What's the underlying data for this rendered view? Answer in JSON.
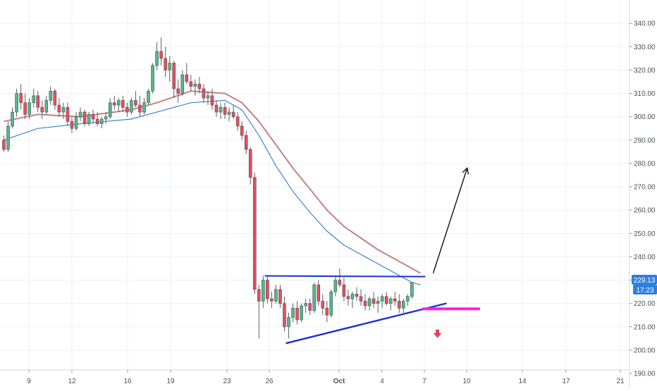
{
  "colors": {
    "up": "#53b987",
    "down": "#eb4d5c",
    "wick": "#5b5f66",
    "ema_fast": "#3b84d8",
    "ema_slow": "#c48286",
    "trendline": "#1c2fd6",
    "target_box": "#ff1fd6",
    "down_arrow": "#e0475a",
    "arrow": "#111111",
    "price_badge": "#2f7fe0",
    "grid": "#eef0f3",
    "axis_text": "#4a4f5a"
  },
  "price_badge": {
    "price": "229.13",
    "timer": "17:23"
  },
  "chart_data": {
    "type": "candlestick",
    "title": "",
    "xlabel": "",
    "ylabel": "",
    "ylim": [
      189,
      346
    ],
    "grid": true,
    "y_ticks": [
      "190.00",
      "200.00",
      "210.00",
      "220.00",
      "230.00",
      "240.00",
      "250.00",
      "260.00",
      "270.00",
      "280.00",
      "290.00",
      "300.00",
      "310.00",
      "320.00",
      "330.00",
      "340.00"
    ],
    "x_ticks": [
      "9",
      "12",
      "16",
      "19",
      "23",
      "26",
      "Oct",
      "4",
      "7",
      "10",
      "14",
      "17",
      "21"
    ],
    "candles_ohlc": [
      [
        290,
        292,
        285,
        286
      ],
      [
        286,
        298,
        285,
        296
      ],
      [
        296,
        304,
        295,
        302
      ],
      [
        302,
        312,
        300,
        310
      ],
      [
        310,
        314,
        303,
        306
      ],
      [
        306,
        310,
        299,
        301
      ],
      [
        301,
        308,
        299,
        306
      ],
      [
        306,
        312,
        304,
        309
      ],
      [
        309,
        311,
        302,
        304
      ],
      [
        304,
        307,
        299,
        302
      ],
      [
        302,
        309,
        301,
        307
      ],
      [
        307,
        313,
        305,
        311
      ],
      [
        311,
        312,
        303,
        305
      ],
      [
        305,
        308,
        300,
        302
      ],
      [
        302,
        306,
        299,
        304
      ],
      [
        304,
        306,
        296,
        298
      ],
      [
        298,
        300,
        293,
        295
      ],
      [
        295,
        302,
        294,
        300
      ],
      [
        300,
        304,
        298,
        302
      ],
      [
        302,
        303,
        296,
        297
      ],
      [
        297,
        302,
        296,
        301
      ],
      [
        301,
        303,
        297,
        299
      ],
      [
        299,
        302,
        296,
        297
      ],
      [
        297,
        300,
        295,
        299
      ],
      [
        299,
        302,
        297,
        300
      ],
      [
        300,
        308,
        299,
        306
      ],
      [
        306,
        309,
        303,
        305
      ],
      [
        305,
        308,
        302,
        307
      ],
      [
        307,
        309,
        302,
        304
      ],
      [
        304,
        306,
        300,
        302
      ],
      [
        302,
        308,
        301,
        307
      ],
      [
        307,
        311,
        304,
        305
      ],
      [
        305,
        309,
        300,
        302
      ],
      [
        302,
        308,
        301,
        306
      ],
      [
        306,
        312,
        305,
        311
      ],
      [
        311,
        323,
        310,
        322
      ],
      [
        322,
        332,
        320,
        328
      ],
      [
        328,
        334,
        322,
        325
      ],
      [
        325,
        330,
        317,
        320
      ],
      [
        320,
        326,
        315,
        323
      ],
      [
        323,
        324,
        308,
        312
      ],
      [
        312,
        316,
        306,
        310
      ],
      [
        310,
        320,
        309,
        318
      ],
      [
        318,
        323,
        314,
        315
      ],
      [
        315,
        318,
        311,
        313
      ],
      [
        313,
        316,
        309,
        314
      ],
      [
        314,
        317,
        310,
        312
      ],
      [
        312,
        314,
        306,
        308
      ],
      [
        308,
        311,
        305,
        309
      ],
      [
        309,
        312,
        303,
        305
      ],
      [
        305,
        307,
        300,
        302
      ],
      [
        302,
        306,
        299,
        304
      ],
      [
        304,
        306,
        299,
        301
      ],
      [
        301,
        304,
        298,
        302
      ],
      [
        302,
        305,
        299,
        300
      ],
      [
        300,
        302,
        294,
        296
      ],
      [
        296,
        298,
        290,
        292
      ],
      [
        292,
        294,
        284,
        286
      ],
      [
        286,
        287,
        271,
        274
      ],
      [
        274,
        276,
        224,
        226
      ],
      [
        226,
        228,
        205,
        221
      ],
      [
        221,
        232,
        218,
        230
      ],
      [
        230,
        232,
        220,
        222
      ],
      [
        222,
        225,
        218,
        221
      ],
      [
        221,
        228,
        220,
        226
      ],
      [
        226,
        228,
        218,
        220
      ],
      [
        220,
        223,
        208,
        210
      ],
      [
        210,
        216,
        205,
        214
      ],
      [
        214,
        220,
        212,
        218
      ],
      [
        218,
        221,
        211,
        213
      ],
      [
        213,
        220,
        212,
        219
      ],
      [
        219,
        222,
        216,
        220
      ],
      [
        220,
        222,
        215,
        217
      ],
      [
        217,
        229,
        216,
        228
      ],
      [
        228,
        230,
        219,
        221
      ],
      [
        221,
        224,
        215,
        218
      ],
      [
        218,
        221,
        212,
        215
      ],
      [
        215,
        226,
        214,
        225
      ],
      [
        225,
        232,
        223,
        230
      ],
      [
        230,
        235,
        227,
        228
      ],
      [
        228,
        231,
        221,
        223
      ],
      [
        223,
        226,
        219,
        222
      ],
      [
        222,
        225,
        218,
        224
      ],
      [
        224,
        227,
        221,
        223
      ],
      [
        223,
        226,
        219,
        221
      ],
      [
        221,
        224,
        217,
        219
      ],
      [
        219,
        223,
        217,
        222
      ],
      [
        222,
        225,
        218,
        220
      ],
      [
        220,
        223,
        216,
        221
      ],
      [
        221,
        224,
        218,
        223
      ],
      [
        223,
        225,
        219,
        220
      ],
      [
        220,
        223,
        217,
        222
      ],
      [
        222,
        225,
        219,
        221
      ],
      [
        221,
        224,
        216,
        218
      ],
      [
        218,
        222,
        216,
        221
      ],
      [
        221,
        224,
        219,
        223
      ],
      [
        223,
        229,
        222,
        229
      ]
    ],
    "ema_fast": [
      [
        0,
        290
      ],
      [
        8,
        295
      ],
      [
        18,
        297
      ],
      [
        30,
        299
      ],
      [
        36,
        302
      ],
      [
        44,
        306
      ],
      [
        52,
        307
      ],
      [
        56,
        303
      ],
      [
        60,
        292
      ],
      [
        64,
        279
      ],
      [
        68,
        268
      ],
      [
        72,
        259
      ],
      [
        76,
        251
      ],
      [
        80,
        245
      ],
      [
        84,
        241
      ],
      [
        88,
        237
      ],
      [
        92,
        233
      ],
      [
        96,
        229
      ],
      [
        98,
        228
      ]
    ],
    "ema_slow": [
      [
        0,
        298
      ],
      [
        8,
        301
      ],
      [
        18,
        300
      ],
      [
        30,
        303
      ],
      [
        36,
        306
      ],
      [
        44,
        311
      ],
      [
        52,
        310
      ],
      [
        56,
        306
      ],
      [
        60,
        298
      ],
      [
        64,
        288
      ],
      [
        68,
        278
      ],
      [
        72,
        269
      ],
      [
        76,
        260
      ],
      [
        80,
        253
      ],
      [
        84,
        248
      ],
      [
        88,
        243
      ],
      [
        92,
        239
      ],
      [
        96,
        235
      ],
      [
        98,
        233
      ]
    ],
    "annotations": {
      "upper_line": [
        [
          61.5,
          231.8
        ],
        [
          99,
          231.5
        ]
      ],
      "lower_line": [
        [
          66.5,
          203
        ],
        [
          104,
          220
        ]
      ],
      "target_box": [
        [
          98.5,
          218.3
        ],
        [
          112,
          217.2
        ]
      ],
      "up_arrow": [
        [
          101,
          233
        ],
        [
          109,
          278
        ]
      ],
      "down_arrow_at": [
        [
          102,
          207
        ]
      ]
    }
  }
}
